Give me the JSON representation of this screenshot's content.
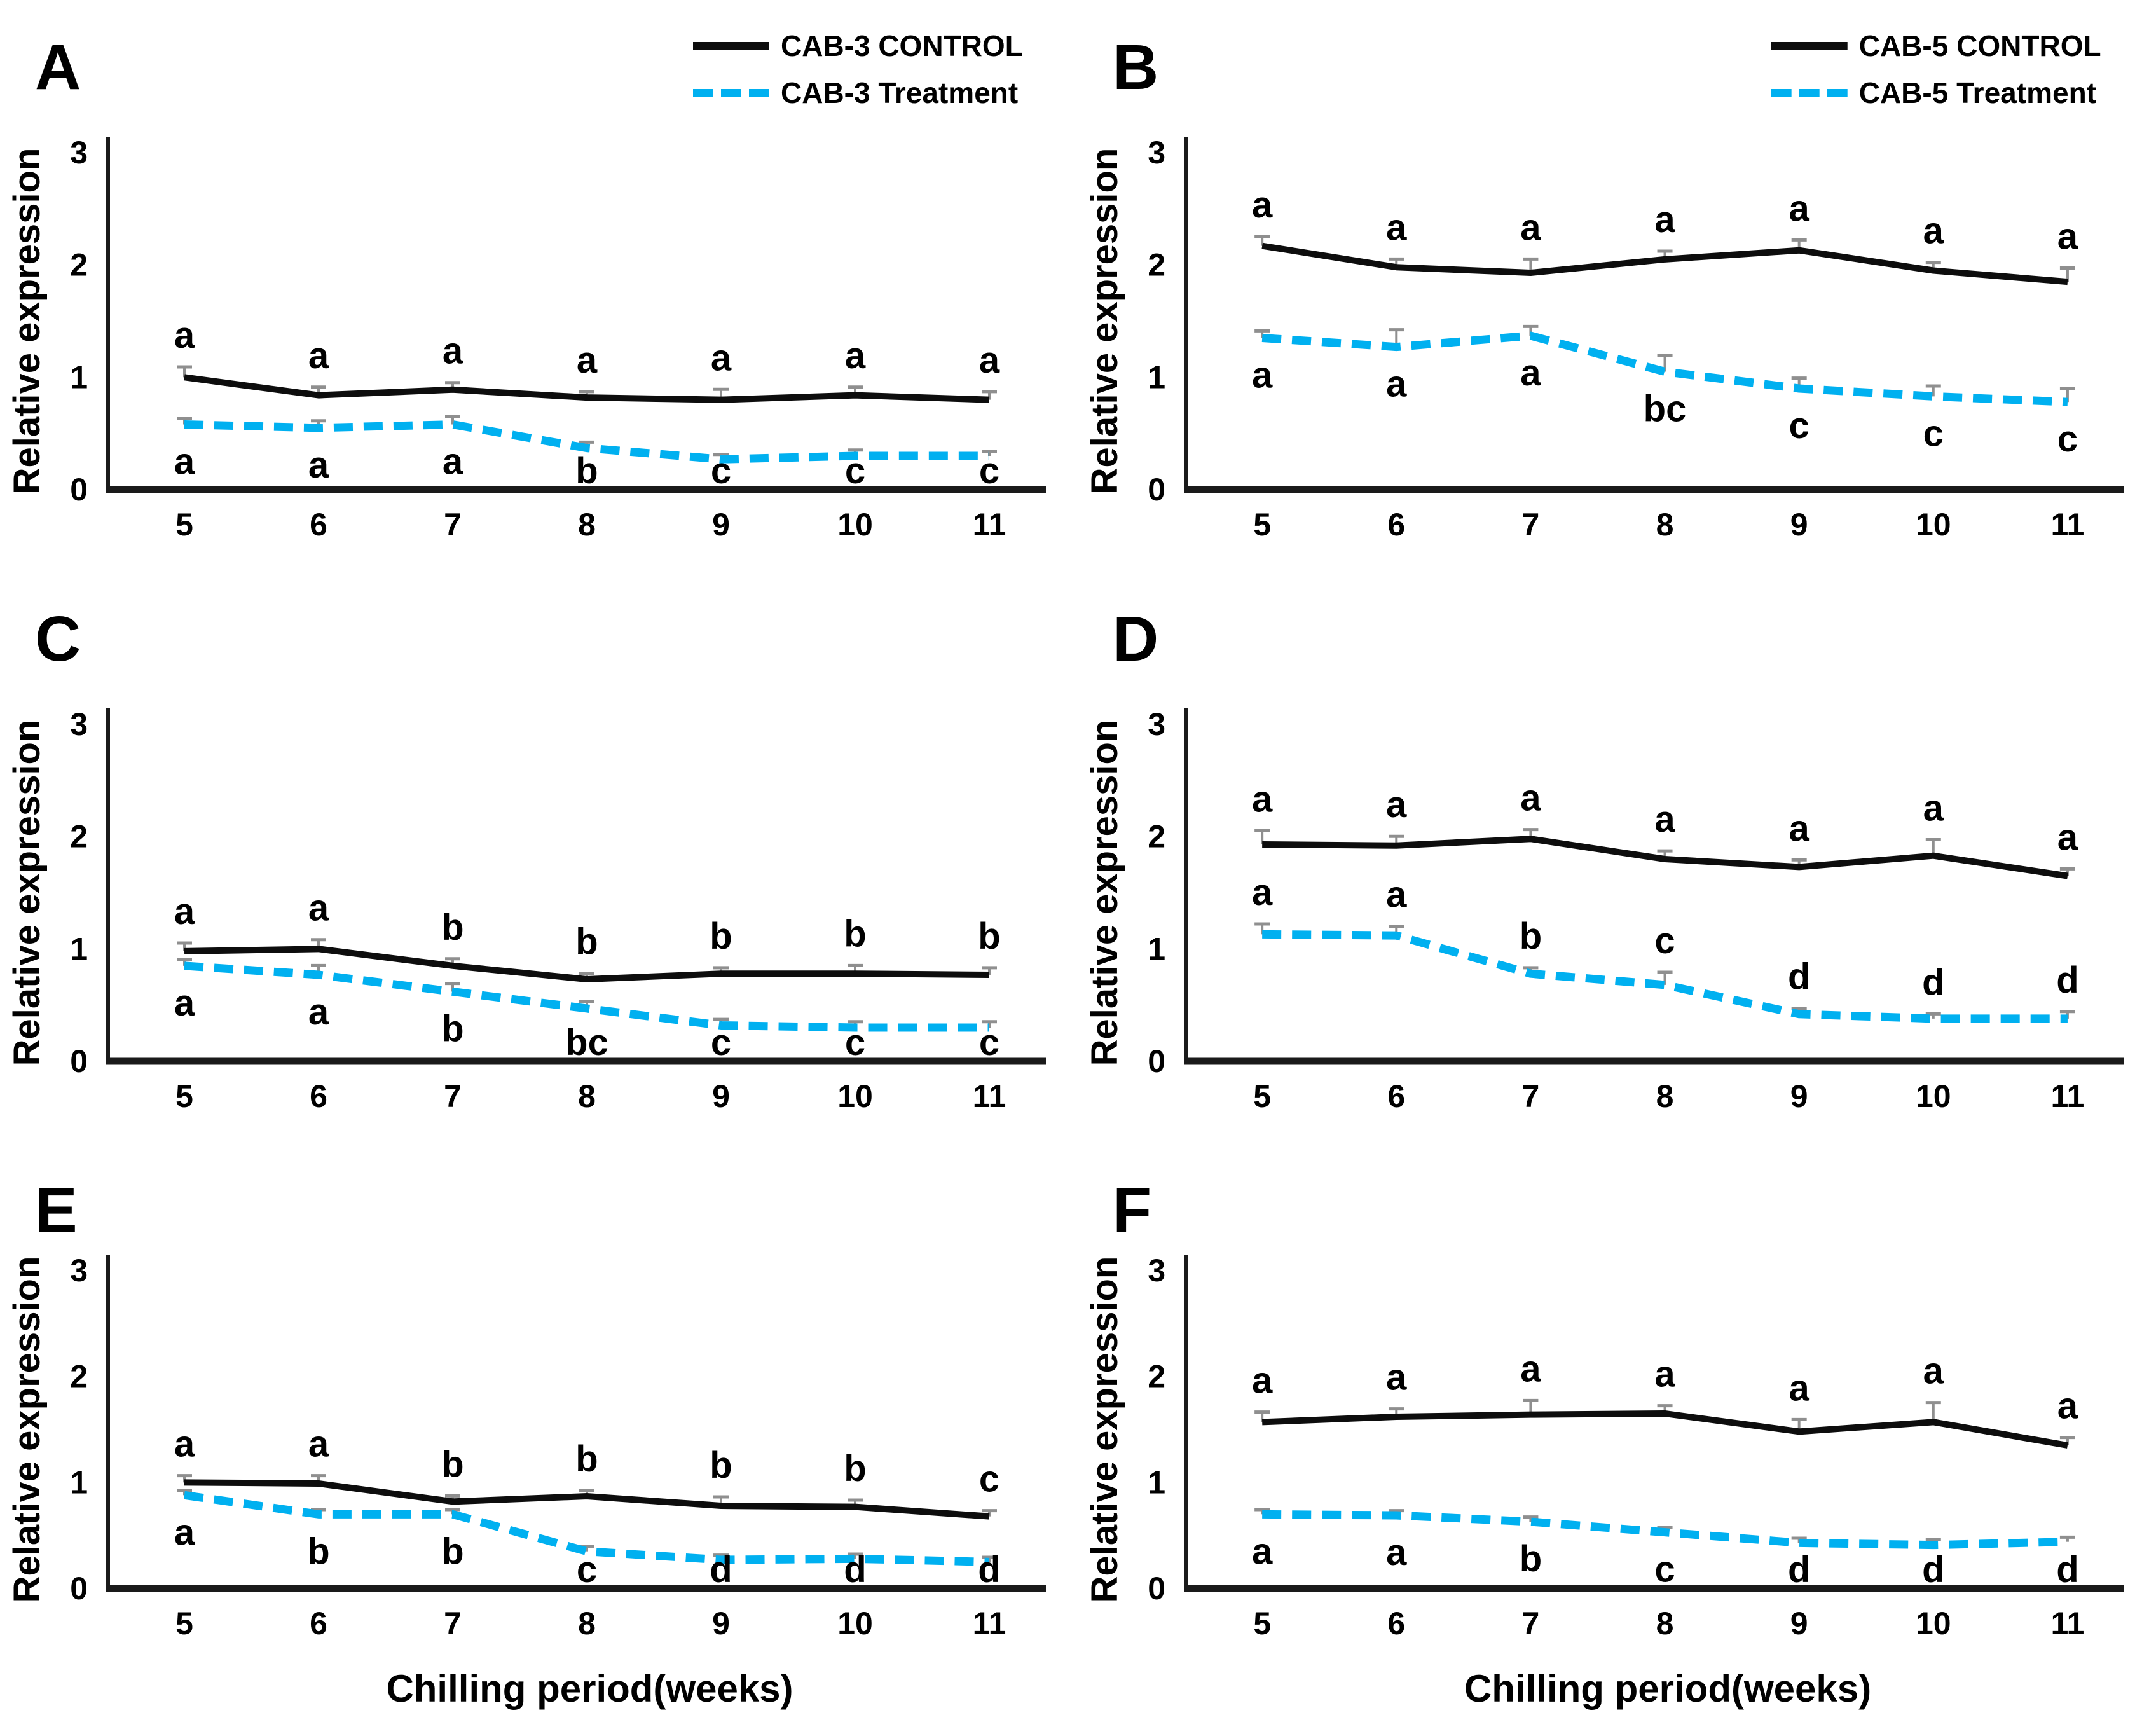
{
  "figure": {
    "ylabel": "Relative expression",
    "xlabel": "Chilling period(weeks)",
    "colors": {
      "control_line": "#0d0d0d",
      "treatment_line": "#00b0f0",
      "error_bar": "#8f8f8f",
      "axis": "#1a1a1a",
      "text": "#000000",
      "background": "#ffffff"
    }
  },
  "chart_data": [
    {
      "type": "line",
      "panel_label": "A",
      "x": [
        5,
        6,
        7,
        8,
        9,
        10,
        11
      ],
      "xlabel": null,
      "ylabel": "Relative expression",
      "ylim": [
        0,
        3
      ],
      "yticks": [
        0,
        1,
        2,
        3
      ],
      "legend": {
        "position": "top-right",
        "entries": [
          "CAB-3 CONTROL",
          "CAB-3 Treatment"
        ]
      },
      "series": [
        {
          "name": "CAB-3 CONTROL",
          "line": "solid",
          "color_key": "control_line",
          "values": [
            1.0,
            0.84,
            0.89,
            0.82,
            0.8,
            0.84,
            0.8
          ],
          "err": [
            0.07,
            0.05,
            0.04,
            0.03,
            0.07,
            0.05,
            0.05
          ],
          "letters": [
            "a",
            "a",
            "a",
            "a",
            "a",
            "a",
            "a"
          ],
          "letters_side": "above"
        },
        {
          "name": "CAB-3 Treatment",
          "line": "dashed",
          "color_key": "treatment_line",
          "values": [
            0.58,
            0.55,
            0.58,
            0.37,
            0.27,
            0.3,
            0.3
          ],
          "err": [
            0.03,
            0.04,
            0.05,
            0.03,
            0.02,
            0.03,
            0.02
          ],
          "letters": [
            "a",
            "a",
            "a",
            "b",
            "c",
            "c",
            "c"
          ],
          "letters_side": "below"
        }
      ]
    },
    {
      "type": "line",
      "panel_label": "B",
      "x": [
        5,
        6,
        7,
        8,
        9,
        10,
        11
      ],
      "xlabel": null,
      "ylabel": "Relative expression",
      "ylim": [
        0,
        3
      ],
      "yticks": [
        0,
        1,
        2,
        3
      ],
      "legend": {
        "position": "top-right",
        "entries": [
          "CAB-5 CONTROL",
          "CAB-5 Treatment"
        ]
      },
      "series": [
        {
          "name": "CAB-5 CONTROL",
          "line": "solid",
          "color_key": "control_line",
          "values": [
            2.17,
            1.98,
            1.93,
            2.05,
            2.13,
            1.95,
            1.85
          ],
          "err": [
            0.06,
            0.05,
            0.1,
            0.05,
            0.07,
            0.05,
            0.1
          ],
          "letters": [
            "a",
            "a",
            "a",
            "a",
            "a",
            "a",
            "a"
          ],
          "letters_side": "above"
        },
        {
          "name": "CAB-5 Treatment",
          "line": "dashed",
          "color_key": "treatment_line",
          "values": [
            1.35,
            1.27,
            1.37,
            1.05,
            0.9,
            0.83,
            0.78
          ],
          "err": [
            0.04,
            0.13,
            0.06,
            0.12,
            0.07,
            0.07,
            0.1
          ],
          "letters": [
            "a",
            "a",
            "a",
            "bc",
            "c",
            "c",
            "c"
          ],
          "letters_side": "below"
        }
      ]
    },
    {
      "type": "line",
      "panel_label": "C",
      "x": [
        5,
        6,
        7,
        8,
        9,
        10,
        11
      ],
      "xlabel": null,
      "ylabel": "Relative expression",
      "ylim": [
        0,
        3
      ],
      "yticks": [
        0,
        1,
        2,
        3
      ],
      "legend": null,
      "series": [
        {
          "name": "CAB-3 CONTROL",
          "line": "solid",
          "color_key": "control_line",
          "values": [
            0.98,
            1.0,
            0.85,
            0.73,
            0.78,
            0.78,
            0.77
          ],
          "err": [
            0.05,
            0.06,
            0.04,
            0.03,
            0.03,
            0.05,
            0.04
          ],
          "letters": [
            "a",
            "a",
            "b",
            "b",
            "b",
            "b",
            "b"
          ],
          "letters_side": "above"
        },
        {
          "name": "CAB-3 Treatment",
          "line": "dashed",
          "color_key": "treatment_line",
          "values": [
            0.85,
            0.77,
            0.62,
            0.47,
            0.32,
            0.3,
            0.3
          ],
          "err": [
            0.03,
            0.06,
            0.05,
            0.04,
            0.03,
            0.03,
            0.03
          ],
          "letters": [
            "a",
            "a",
            "b",
            "bc",
            "c",
            "c",
            "c"
          ],
          "letters_side": "below"
        }
      ]
    },
    {
      "type": "line",
      "panel_label": "D",
      "x": [
        5,
        6,
        7,
        8,
        9,
        10,
        11
      ],
      "xlabel": null,
      "ylabel": "Relative expression",
      "ylim": [
        0,
        3
      ],
      "yticks": [
        0,
        1,
        2,
        3
      ],
      "legend": null,
      "series": [
        {
          "name": "CAB-5 CONTROL",
          "line": "solid",
          "color_key": "control_line",
          "values": [
            1.93,
            1.92,
            1.98,
            1.8,
            1.73,
            1.83,
            1.65
          ],
          "err": [
            0.1,
            0.06,
            0.06,
            0.05,
            0.04,
            0.12,
            0.04
          ],
          "letters": [
            "a",
            "a",
            "a",
            "a",
            "a",
            "a",
            "a"
          ],
          "letters_side": "above"
        },
        {
          "name": "CAB-5 Treatment",
          "line": "dashed",
          "color_key": "treatment_line",
          "values": [
            1.13,
            1.12,
            0.78,
            0.68,
            0.42,
            0.38,
            0.38
          ],
          "err": [
            0.07,
            0.06,
            0.03,
            0.09,
            0.03,
            0.02,
            0.04
          ],
          "letters": [
            "a",
            "a",
            "b",
            "c",
            "d",
            "d",
            "d"
          ],
          "letters_side": "above"
        }
      ]
    },
    {
      "type": "line",
      "panel_label": "E",
      "x": [
        5,
        6,
        7,
        8,
        9,
        10,
        11
      ],
      "xlabel": "Chilling period(weeks)",
      "ylabel": "Relative expression",
      "ylim": [
        0,
        3
      ],
      "yticks": [
        0,
        1,
        2,
        3
      ],
      "legend": null,
      "series": [
        {
          "name": "CAB-3 CONTROL",
          "line": "solid",
          "color_key": "control_line",
          "values": [
            1.0,
            0.99,
            0.82,
            0.87,
            0.78,
            0.77,
            0.68
          ],
          "err": [
            0.04,
            0.05,
            0.03,
            0.03,
            0.06,
            0.04,
            0.03
          ],
          "letters": [
            "a",
            "a",
            "b",
            "b",
            "b",
            "b",
            "c"
          ],
          "letters_side": "above"
        },
        {
          "name": "CAB-3 Treatment",
          "line": "dashed",
          "color_key": "treatment_line",
          "values": [
            0.88,
            0.7,
            0.7,
            0.35,
            0.27,
            0.28,
            0.25
          ],
          "err": [
            0.02,
            0.02,
            0.02,
            0.02,
            0.02,
            0.02,
            0.02
          ],
          "letters": [
            "a",
            "b",
            "b",
            "c",
            "d",
            "d",
            "d"
          ],
          "letters_side": "below"
        }
      ]
    },
    {
      "type": "line",
      "panel_label": "F",
      "x": [
        5,
        6,
        7,
        8,
        9,
        10,
        11
      ],
      "xlabel": "Chilling period(weeks)",
      "ylabel": "Relative expression",
      "ylim": [
        0,
        3
      ],
      "yticks": [
        0,
        1,
        2,
        3
      ],
      "legend": null,
      "series": [
        {
          "name": "CAB-5 CONTROL",
          "line": "solid",
          "color_key": "control_line",
          "values": [
            1.57,
            1.62,
            1.64,
            1.65,
            1.48,
            1.57,
            1.35
          ],
          "err": [
            0.07,
            0.05,
            0.11,
            0.05,
            0.09,
            0.16,
            0.05
          ],
          "letters": [
            "a",
            "a",
            "a",
            "a",
            "a",
            "a",
            "a"
          ],
          "letters_side": "above"
        },
        {
          "name": "CAB-5 Treatment",
          "line": "dashed",
          "color_key": "treatment_line",
          "values": [
            0.7,
            0.69,
            0.63,
            0.53,
            0.43,
            0.41,
            0.44
          ],
          "err": [
            0.02,
            0.02,
            0.02,
            0.02,
            0.02,
            0.03,
            0.02
          ],
          "letters": [
            "a",
            "a",
            "b",
            "c",
            "d",
            "d",
            "d"
          ],
          "letters_side": "below"
        }
      ]
    }
  ]
}
